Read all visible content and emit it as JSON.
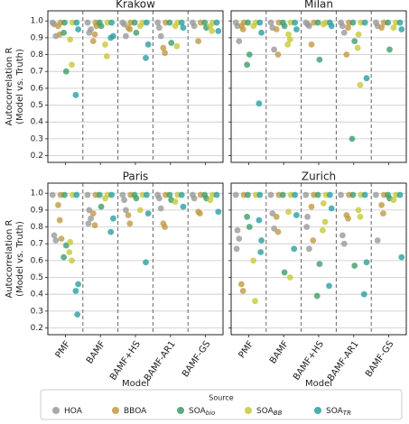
{
  "chart_data": {
    "type": "strip",
    "categories": [
      "PMF",
      "BAMF",
      "BAMF+HS",
      "BAMF-AR1",
      "BAMF-GS"
    ],
    "ylim": [
      0.16,
      1.06
    ],
    "yticks": [
      0.2,
      0.3,
      0.4,
      0.5,
      0.6,
      0.7,
      0.8,
      0.9,
      {
        "value": 1,
        "label": "1.0"
      }
    ],
    "grid": true,
    "ylabel": [
      "Autocorrelation R",
      "(Model vs. Truth)"
    ],
    "xlabel": "Model",
    "legend_title": "Source",
    "legend_position": "bottom",
    "series": [
      {
        "name": "HOA",
        "color": "#9a9a9a"
      },
      {
        "name": "BBOA",
        "color": "#c19a45"
      },
      {
        "name": "SOA",
        "sub": "bio",
        "color": "#3d9e6a"
      },
      {
        "name": "SOA",
        "sub": "BB",
        "color": "#c6c93a"
      },
      {
        "name": "SOA",
        "sub": "TR",
        "color": "#2a9fa2"
      }
    ],
    "panels": [
      {
        "title": "Krakow",
        "values": [
          [
            [
              0.99,
              0.98,
              0.91
            ],
            [
              0.99,
              0.93,
              0.95
            ],
            [
              0.99,
              0.98,
              0.91
            ],
            [
              0.99,
              0.96,
              0.91
            ],
            [
              0.99,
              0.97
            ]
          ],
          [
            [
              0.99,
              0.97,
              0.92
            ],
            [
              0.99,
              0.88,
              0.92,
              0.97
            ],
            [
              0.99,
              0.96,
              0.95
            ],
            [
              0.99,
              0.84,
              0.81
            ],
            [
              0.99,
              0.88
            ]
          ],
          [
            [
              0.99,
              0.7,
              0.93
            ],
            [
              0.99,
              0.97
            ],
            [
              0.99,
              0.93
            ],
            [
              0.99,
              0.87
            ],
            [
              0.99,
              0.96
            ]
          ],
          [
            [
              0.99,
              0.89,
              0.74
            ],
            [
              0.99,
              0.86,
              0.79
            ],
            [
              0.99,
              0.97
            ],
            [
              0.99,
              0.97,
              0.85
            ],
            [
              0.99,
              0.97,
              0.94
            ]
          ],
          [
            [
              0.99,
              0.95,
              0.56
            ],
            [
              0.99,
              0.91,
              0.9
            ],
            [
              0.99,
              0.86,
              0.78
            ],
            [
              0.99,
              0.96
            ],
            [
              0.99,
              0.94
            ]
          ]
        ]
      },
      {
        "title": "Milan",
        "values": [
          [
            [
              0.99,
              0.97,
              0.88
            ],
            [
              0.99,
              0.96,
              0.83
            ],
            [
              0.99,
              0.98,
              0.97
            ],
            [
              0.99,
              0.97,
              0.93
            ],
            [
              0.99,
              0.97
            ]
          ],
          [
            [
              0.99,
              0.97,
              0.95
            ],
            [
              0.99,
              0.95,
              0.8
            ],
            [
              0.99,
              0.86
            ],
            [
              0.99,
              0.8,
              0.96
            ],
            [
              0.99,
              0.96
            ]
          ],
          [
            [
              0.99,
              0.8,
              0.74
            ],
            [
              0.99,
              0.97
            ],
            [
              0.99,
              0.77
            ],
            [
              0.99,
              0.88,
              0.3
            ],
            [
              0.99,
              0.83
            ]
          ],
          [
            [
              0.99,
              0.97
            ],
            [
              0.99,
              0.92,
              0.89,
              0.86
            ],
            [
              0.99,
              0.98
            ],
            [
              0.99,
              0.92,
              0.62,
              0.84
            ],
            [
              0.99,
              0.96
            ]
          ],
          [
            [
              0.99,
              0.93,
              0.51
            ],
            [
              0.99,
              0.95
            ],
            [
              0.99,
              0.97
            ],
            [
              0.99,
              0.66
            ],
            [
              0.99,
              0.95
            ]
          ]
        ]
      },
      {
        "title": "Paris",
        "values": [
          [
            [
              0.99,
              0.75,
              0.72
            ],
            [
              0.99,
              0.9,
              0.85,
              0.82
            ],
            [
              0.99,
              0.96,
              0.9
            ],
            [
              0.99,
              0.97,
              0.91
            ],
            [
              0.99,
              0.97
            ]
          ],
          [
            [
              0.99,
              0.93,
              0.84,
              0.73
            ],
            [
              0.99,
              0.88,
              0.81
            ],
            [
              0.99,
              0.87,
              0.82
            ],
            [
              0.99,
              0.82,
              0.8
            ],
            [
              0.99,
              0.89,
              0.88
            ]
          ],
          [
            [
              0.99,
              0.69,
              0.62
            ],
            [
              0.99,
              0.92
            ],
            [
              0.99,
              0.97
            ],
            [
              0.99,
              0.96
            ],
            [
              0.99,
              0.97
            ]
          ],
          [
            [
              0.99,
              0.71,
              0.6,
              0.65
            ],
            [
              0.99,
              0.97
            ],
            [
              0.99,
              0.9
            ],
            [
              0.99,
              0.95
            ],
            [
              0.99,
              0.96
            ]
          ],
          [
            [
              0.99,
              0.46,
              0.42,
              0.28
            ],
            [
              0.99,
              0.85,
              0.77
            ],
            [
              0.99,
              0.88,
              0.59
            ],
            [
              0.99,
              0.92
            ],
            [
              0.99,
              0.89
            ]
          ]
        ]
      },
      {
        "title": "Zurich",
        "values": [
          [
            [
              0.99,
              0.78,
              0.73,
              0.67
            ],
            [
              0.99,
              0.88,
              0.79
            ],
            [
              0.99,
              0.86,
              0.67,
              0.8
            ],
            [
              0.99,
              0.75,
              0.7
            ],
            [
              0.99,
              0.72
            ]
          ],
          [
            [
              0.99,
              0.46,
              0.42
            ],
            [
              0.99,
              0.86,
              0.77
            ],
            [
              0.99,
              0.92,
              0.72
            ],
            [
              0.99,
              0.87,
              0.85
            ],
            [
              0.99,
              0.93,
              0.88
            ]
          ],
          [
            [
              0.99,
              0.8,
              0.86
            ],
            [
              0.99,
              0.53
            ],
            [
              0.99,
              0.58,
              0.39
            ],
            [
              0.99,
              0.57
            ],
            [
              0.99,
              0.97
            ]
          ],
          [
            [
              0.99,
              0.6,
              0.36
            ],
            [
              0.99,
              0.89,
              0.5
            ],
            [
              0.99,
              0.94,
              0.83,
              0.78
            ],
            [
              0.99,
              0.9,
              0.86
            ],
            [
              0.99,
              0.96
            ]
          ],
          [
            [
              0.99,
              0.72,
              0.84,
              0.65
            ],
            [
              0.99,
              0.87,
              0.67
            ],
            [
              0.99,
              0.91,
              0.45
            ],
            [
              0.99,
              0.59,
              0.4
            ],
            [
              0.99,
              0.62
            ]
          ]
        ]
      }
    ]
  }
}
